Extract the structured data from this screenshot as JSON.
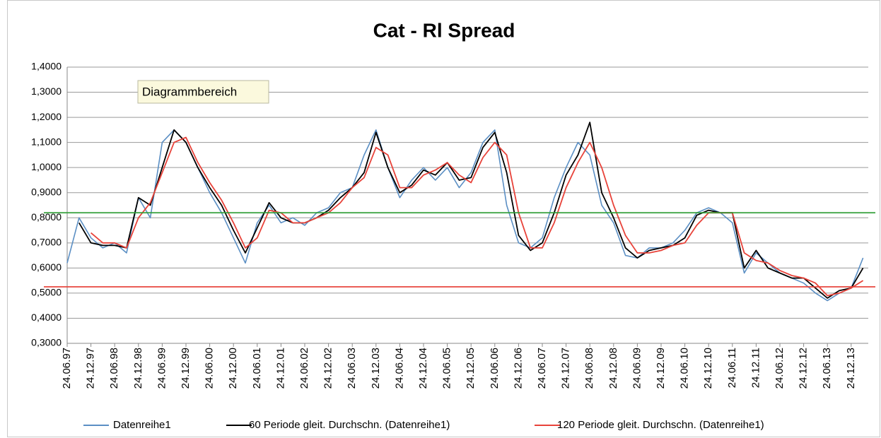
{
  "chart_data": {
    "type": "line",
    "title": "Cat - Rl Spread",
    "categories": [
      "24.06.97",
      null,
      "24.12.97",
      null,
      "24.06.98",
      null,
      "24.12.98",
      null,
      "24.06.99",
      null,
      "24.12.99",
      null,
      "24.06.00",
      null,
      "24.12.00",
      null,
      "24.06.01",
      null,
      "24.12.01",
      null,
      "24.06.02",
      null,
      "24.12.02",
      null,
      "24.06.03",
      null,
      "24.12.03",
      null,
      "24.06.04",
      null,
      "24.12.04",
      null,
      "24.06.05",
      null,
      "24.12.05",
      null,
      "24.06.06",
      null,
      "24.12.06",
      null,
      "24.06.07",
      null,
      "24.12.07",
      null,
      "24.06.08",
      null,
      "24.12.08",
      null,
      "24.06.09",
      null,
      "24.12.09",
      null,
      "24.06.10",
      null,
      "24.12.10",
      null,
      "24.06.11",
      null,
      "24.12.11",
      null,
      "24.06.12",
      null,
      "24.12.12",
      null,
      "24.06.13",
      null,
      "24.12.13",
      null
    ],
    "series": [
      {
        "name": "Datenreihe1",
        "color": "#5b8fc4",
        "values": [
          0.62,
          0.8,
          0.72,
          0.68,
          0.7,
          0.66,
          0.88,
          0.8,
          1.1,
          1.15,
          1.1,
          1.0,
          0.9,
          0.82,
          0.72,
          0.62,
          0.78,
          0.85,
          0.78,
          0.8,
          0.77,
          0.82,
          0.84,
          0.9,
          0.92,
          1.05,
          1.15,
          1.0,
          0.88,
          0.95,
          1.0,
          0.95,
          1.0,
          0.92,
          0.98,
          1.1,
          1.15,
          0.85,
          0.7,
          0.68,
          0.72,
          0.88,
          1.0,
          1.1,
          1.05,
          0.85,
          0.78,
          0.65,
          0.64,
          0.68,
          0.68,
          0.7,
          0.75,
          0.82,
          0.84,
          0.82,
          0.78,
          0.58,
          0.66,
          0.62,
          0.58,
          0.56,
          0.54,
          0.5,
          0.47,
          0.5,
          0.52,
          0.64
        ]
      },
      {
        "name": "60 Periode gleit. Durchschn. (Datenreihe1)",
        "color": "#000000",
        "values": [
          null,
          0.78,
          0.7,
          0.69,
          0.69,
          0.68,
          0.88,
          0.85,
          1.0,
          1.15,
          1.1,
          1.0,
          0.92,
          0.85,
          0.75,
          0.66,
          0.76,
          0.86,
          0.8,
          0.78,
          0.78,
          0.8,
          0.83,
          0.88,
          0.92,
          0.98,
          1.14,
          1.0,
          0.9,
          0.93,
          0.99,
          0.97,
          1.02,
          0.95,
          0.96,
          1.08,
          1.14,
          0.98,
          0.73,
          0.67,
          0.7,
          0.82,
          0.97,
          1.05,
          1.18,
          0.9,
          0.8,
          0.68,
          0.64,
          0.67,
          0.68,
          0.69,
          0.72,
          0.81,
          0.83,
          0.82,
          0.82,
          0.6,
          0.67,
          0.6,
          0.58,
          0.56,
          0.56,
          0.52,
          0.48,
          0.51,
          0.52,
          0.6
        ]
      },
      {
        "name": "120 Periode gleit. Durchschn. (Datenreihe1)",
        "color": "#e8433a",
        "values": [
          null,
          null,
          0.74,
          0.7,
          0.7,
          0.68,
          0.8,
          0.86,
          0.98,
          1.1,
          1.12,
          1.02,
          0.94,
          0.87,
          0.78,
          0.68,
          0.72,
          0.83,
          0.82,
          0.78,
          0.78,
          0.8,
          0.82,
          0.86,
          0.92,
          0.96,
          1.08,
          1.05,
          0.92,
          0.92,
          0.97,
          0.99,
          1.02,
          0.97,
          0.94,
          1.04,
          1.1,
          1.05,
          0.82,
          0.68,
          0.68,
          0.78,
          0.92,
          1.02,
          1.1,
          1.0,
          0.85,
          0.73,
          0.66,
          0.66,
          0.67,
          0.69,
          0.7,
          0.77,
          0.82,
          0.82,
          0.82,
          0.66,
          0.63,
          0.62,
          0.59,
          0.57,
          0.56,
          0.54,
          0.49,
          0.5,
          0.52,
          0.55
        ]
      }
    ],
    "reference_lines": [
      {
        "value": 0.82,
        "color": "#2f9e36"
      },
      {
        "value": 0.525,
        "color": "#e8433a"
      }
    ],
    "ylim": [
      0.3,
      1.4
    ],
    "yticks": [
      {
        "value": 0.3,
        "label": "0,3000"
      },
      {
        "value": 0.4,
        "label": "0,4000"
      },
      {
        "value": 0.5,
        "label": "0,5000"
      },
      {
        "value": 0.6,
        "label": "0,6000"
      },
      {
        "value": 0.7,
        "label": "0,7000"
      },
      {
        "value": 0.8,
        "label": "0,8000"
      },
      {
        "value": 0.9,
        "label": "0,9000"
      },
      {
        "value": 1.0,
        "label": "1,0000"
      },
      {
        "value": 1.1,
        "label": "1,1000"
      },
      {
        "value": 1.2,
        "label": "1,2000"
      },
      {
        "value": 1.3,
        "label": "1,3000"
      },
      {
        "value": 1.4,
        "label": "1,4000"
      }
    ],
    "grid": true,
    "legend": "bottom",
    "tooltip": "Diagrammbereich"
  }
}
